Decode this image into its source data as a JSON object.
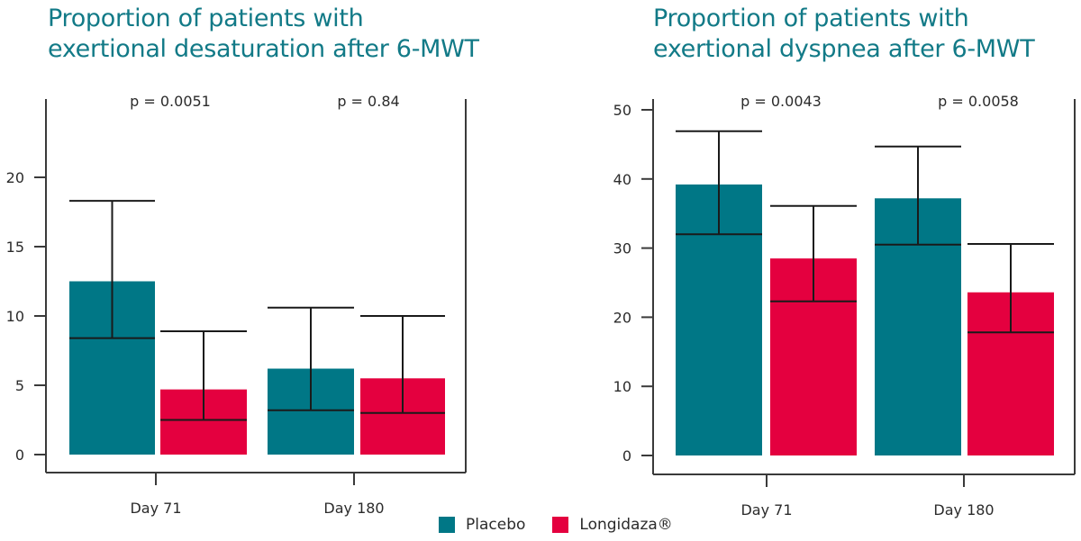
{
  "chart_data": [
    {
      "type": "bar",
      "title": "Proportion of patients with exertional desaturation after 6-MWT",
      "title_lines": [
        "Proportion of patients with",
        "exertional desaturation after 6-MWT"
      ],
      "categories": [
        "Day 71",
        "Day 180"
      ],
      "series": [
        {
          "name": "Placebo",
          "color": "#007786",
          "values": [
            12.5,
            6.2
          ],
          "error_low": [
            8.4,
            3.2
          ],
          "error_high": [
            18.3,
            10.6
          ]
        },
        {
          "name": "Longidaza®",
          "color": "#e4003f",
          "values": [
            4.7,
            5.5
          ],
          "error_low": [
            2.5,
            3.0
          ],
          "error_high": [
            8.9,
            10.0
          ]
        }
      ],
      "p_values": [
        "p = 0.0051",
        "p = 0.84"
      ],
      "yticks": [
        0,
        5,
        10,
        15,
        20
      ],
      "ylim": [
        -1.3,
        25.6
      ],
      "xlabel": "",
      "ylabel": "",
      "grid": false
    },
    {
      "type": "bar",
      "title": "Proportion of patients with exertional dyspnea after 6-MWT",
      "title_lines": [
        "Proportion of patients with",
        "exertional dyspnea after 6-MWT"
      ],
      "categories": [
        "Day 71",
        "Day 180"
      ],
      "series": [
        {
          "name": "Placebo",
          "color": "#007786",
          "values": [
            39.2,
            37.2
          ],
          "error_low": [
            32.0,
            30.5
          ],
          "error_high": [
            46.9,
            44.7
          ]
        },
        {
          "name": "Longidaza®",
          "color": "#e4003f",
          "values": [
            28.5,
            23.6
          ],
          "error_low": [
            22.3,
            17.8
          ],
          "error_high": [
            36.1,
            30.6
          ]
        }
      ],
      "p_values": [
        "p = 0.0043",
        "p = 0.0058"
      ],
      "yticks": [
        0,
        10,
        20,
        30,
        40,
        50
      ],
      "ylim": [
        -2.7,
        52
      ],
      "xlabel": "",
      "ylabel": "",
      "grid": false
    }
  ],
  "legend": {
    "placement": "bottom-center",
    "items": [
      {
        "label": "Placebo",
        "color": "#007786"
      },
      {
        "label": "Longidaza®",
        "color": "#e4003f"
      }
    ]
  }
}
